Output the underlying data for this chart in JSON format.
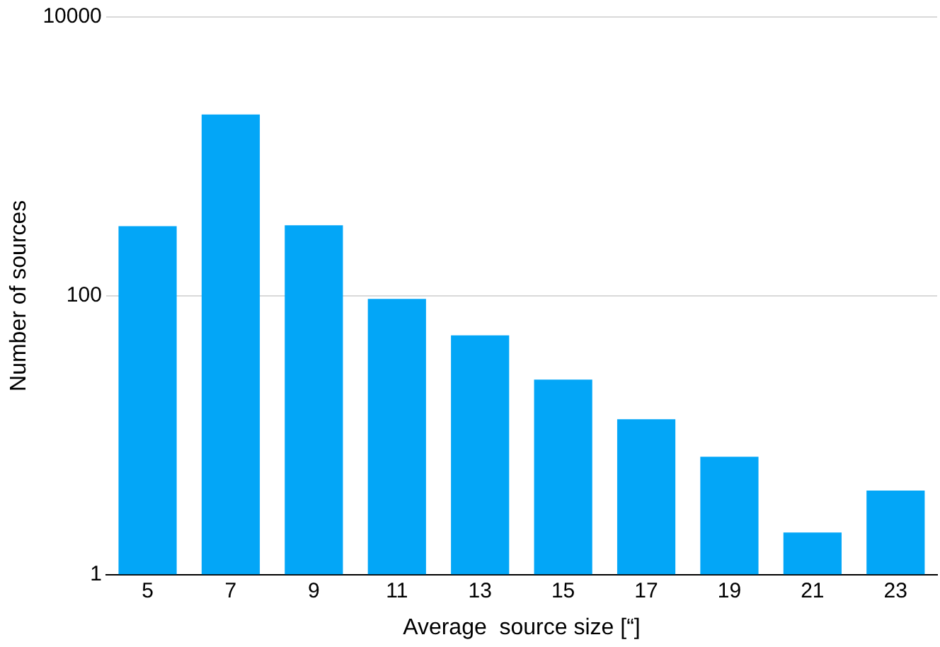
{
  "chart_data": {
    "type": "bar",
    "xlabel": "Average  source size [“]",
    "ylabel": "Number of sources",
    "categories": [
      "5",
      "7",
      "9",
      "11",
      "13",
      "15",
      "17",
      "19",
      "21",
      "23"
    ],
    "values": [
      316,
      2000,
      320,
      95,
      52,
      25,
      13,
      7,
      2,
      4
    ],
    "color": "#03a6f7",
    "log": true,
    "ylim": [
      1,
      10000
    ],
    "yticks": [
      1,
      100,
      10000
    ],
    "grid": "y",
    "legend": false
  }
}
